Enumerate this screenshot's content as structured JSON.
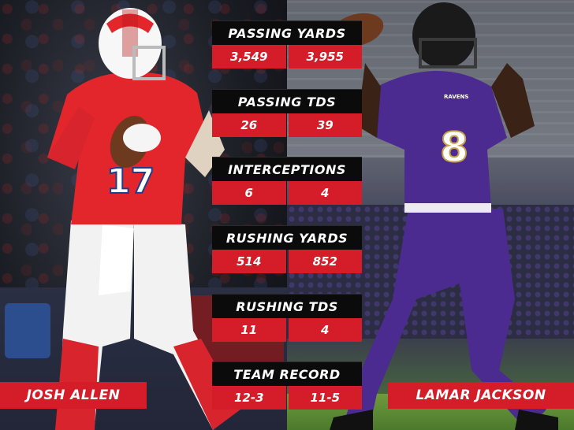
{
  "players": {
    "left": {
      "name": "JOSH ALLEN",
      "jersey_number": "17"
    },
    "right": {
      "name": "LAMAR JACKSON",
      "jersey_number": "8",
      "team_wordmark": "RAVENS"
    }
  },
  "stats": [
    {
      "label": "PASSING YARDS",
      "left": "3,549",
      "right": "3,955"
    },
    {
      "label": "PASSING TDS",
      "left": "26",
      "right": "39"
    },
    {
      "label": "INTERCEPTIONS",
      "left": "6",
      "right": "4"
    },
    {
      "label": "RUSHING YARDS",
      "left": "514",
      "right": "852"
    },
    {
      "label": "RUSHING TDS",
      "left": "11",
      "right": "4"
    },
    {
      "label": "TEAM RECORD",
      "left": "12-3",
      "right": "11-5"
    }
  ],
  "colors": {
    "accent_red": "#d51d2a",
    "header_black": "#0b0b0b",
    "bills_red": "#e2262c",
    "ravens_purple": "#4b2b8f"
  }
}
